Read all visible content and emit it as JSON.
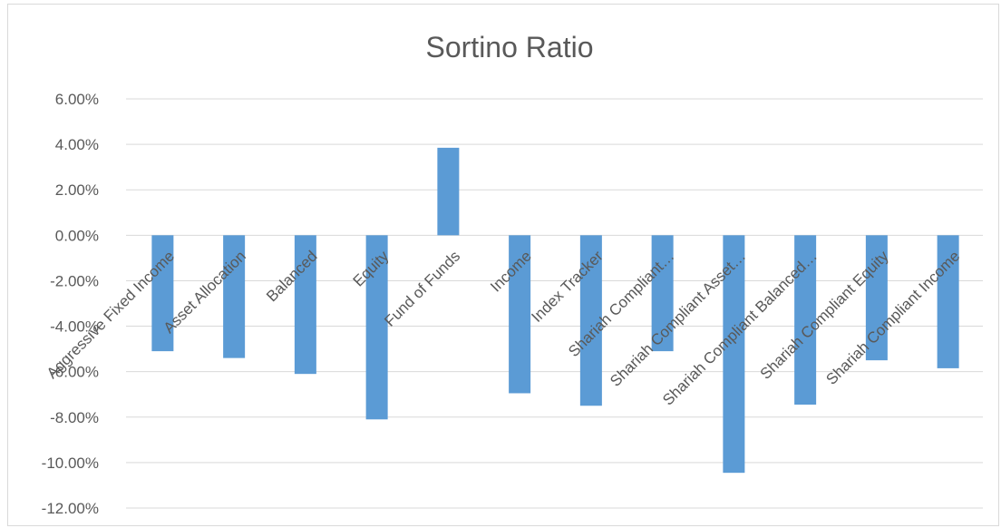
{
  "chart_data": {
    "type": "bar",
    "title": "Sortino Ratio",
    "xlabel": "",
    "ylabel": "",
    "ylim": [
      -0.12,
      0.06
    ],
    "ytick_values": [
      0.06,
      0.04,
      0.02,
      0.0,
      -0.02,
      -0.04,
      -0.06,
      -0.08,
      -0.1,
      -0.12
    ],
    "ytick_labels": [
      "6.00%",
      "4.00%",
      "2.00%",
      "0.00%",
      "-2.00%",
      "-4.00%",
      "-6.00%",
      "-8.00%",
      "-10.00%",
      "-12.00%"
    ],
    "grid": true,
    "legend": "none",
    "bar_color": "#5b9bd5",
    "categories": [
      "Aggressive Fixed Income",
      "Asset Allocation",
      "Balanced",
      "Equity",
      "Fund of Funds",
      "Income",
      "Index Tracker",
      "Shariah Compliant…",
      "Shariah Compliant Asset…",
      "Shariah Compliant Balanced…",
      "Shariah Compliant Equity",
      "Shariah Compliant Income"
    ],
    "values": [
      -0.051,
      -0.054,
      -0.061,
      -0.081,
      0.0385,
      -0.0695,
      -0.075,
      -0.051,
      -0.1045,
      -0.0745,
      -0.055,
      -0.0585
    ]
  }
}
